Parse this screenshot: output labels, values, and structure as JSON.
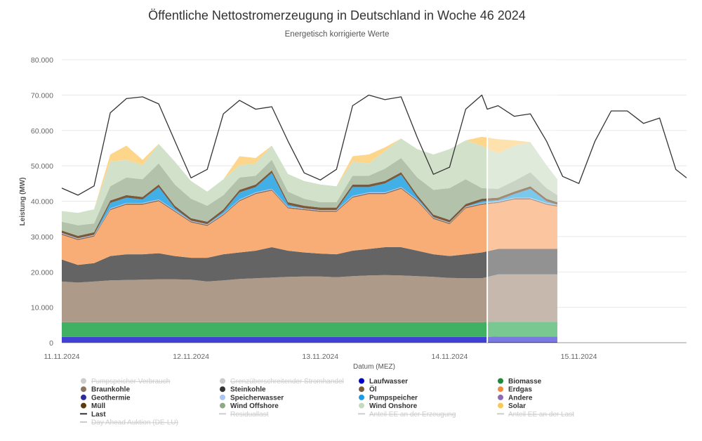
{
  "chart_data": {
    "type": "area",
    "stacked": true,
    "title": "Öffentliche Nettostromerzeugung in Deutschland in Woche 46 2024",
    "subtitle": "Energetisch korrigierte Werte",
    "xlabel": "Datum (MEZ)",
    "ylabel": "Leistung (MW)",
    "ylim": [
      0,
      80000
    ],
    "yticks": [
      "0",
      "10.000",
      "20.000",
      "30.000",
      "40.000",
      "50.000",
      "60.000",
      "70.000",
      "80.000"
    ],
    "yticks_values": [
      0,
      10000,
      20000,
      30000,
      40000,
      50000,
      60000,
      70000,
      80000
    ],
    "xticks": [
      "11.11.2024",
      "12.11.2024",
      "13.11.2024",
      "14.11.2024",
      "15.11.2024"
    ],
    "xlim": [
      "2024-11-11 00:00",
      "2024-11-15 20:00"
    ],
    "grid": true,
    "legend_placement": "bottom",
    "forecast_start": "2024-11-14 07:00",
    "x": [
      "2024-11-11 00:00",
      "2024-11-11 03:00",
      "2024-11-11 06:00",
      "2024-11-11 09:00",
      "2024-11-11 12:00",
      "2024-11-11 15:00",
      "2024-11-11 18:00",
      "2024-11-11 21:00",
      "2024-11-12 00:00",
      "2024-11-12 03:00",
      "2024-11-12 06:00",
      "2024-11-12 09:00",
      "2024-11-12 12:00",
      "2024-11-12 15:00",
      "2024-11-12 18:00",
      "2024-11-12 21:00",
      "2024-11-13 00:00",
      "2024-11-13 03:00",
      "2024-11-13 06:00",
      "2024-11-13 09:00",
      "2024-11-13 12:00",
      "2024-11-13 15:00",
      "2024-11-13 18:00",
      "2024-11-13 21:00",
      "2024-11-14 00:00",
      "2024-11-14 03:00",
      "2024-11-14 06:00",
      "2024-11-14 09:00",
      "2024-11-14 12:00",
      "2024-11-14 15:00",
      "2024-11-14 18:00",
      "2024-11-14 20:00"
    ],
    "series": [
      {
        "name": "Laufwasser",
        "color": "#4040d4",
        "values": [
          1600,
          1600,
          1600,
          1600,
          1600,
          1600,
          1600,
          1600,
          1600,
          1600,
          1600,
          1600,
          1600,
          1600,
          1600,
          1600,
          1600,
          1600,
          1600,
          1600,
          1600,
          1600,
          1600,
          1600,
          1600,
          1600,
          1600,
          1700,
          1700,
          1700,
          1700,
          1700
        ]
      },
      {
        "name": "Biomasse",
        "color": "#40b062",
        "values": [
          4200,
          4200,
          4200,
          4200,
          4200,
          4200,
          4200,
          4200,
          4200,
          4200,
          4200,
          4200,
          4200,
          4200,
          4200,
          4200,
          4200,
          4200,
          4200,
          4200,
          4200,
          4200,
          4200,
          4200,
          4200,
          4200,
          4200,
          4200,
          4200,
          4200,
          4200,
          4200
        ]
      },
      {
        "name": "Braunkohle",
        "color": "#ae9a88",
        "values": [
          11500,
          11200,
          11500,
          11800,
          11900,
          12000,
          12100,
          12100,
          12000,
          11500,
          11800,
          12200,
          12400,
          12600,
          12800,
          12900,
          12900,
          12700,
          13000,
          13200,
          13300,
          13200,
          13000,
          12800,
          12500,
          12400,
          12400,
          13400,
          13400,
          13400,
          13400,
          13400
        ]
      },
      {
        "name": "Steinkohle",
        "color": "#646464",
        "values": [
          6200,
          5000,
          5200,
          6900,
          7300,
          7200,
          7400,
          6600,
          6200,
          6700,
          7400,
          7500,
          7800,
          8600,
          7400,
          6800,
          6500,
          6500,
          7200,
          7500,
          7900,
          8000,
          7200,
          6400,
          6200,
          6800,
          7300,
          7200,
          7200,
          7200,
          7200,
          7200
        ]
      },
      {
        "name": "Erdgas",
        "color": "#f9ad76",
        "values": [
          7000,
          7000,
          7500,
          13000,
          14000,
          14000,
          14700,
          12500,
          10000,
          9000,
          11000,
          14500,
          16000,
          16000,
          12000,
          12000,
          11800,
          12000,
          15000,
          15500,
          15000,
          16500,
          14000,
          10000,
          9000,
          13000,
          13500,
          13000,
          14000,
          14000,
          12500,
          12000
        ]
      },
      {
        "name": "Öl",
        "color": "#8b6a4a",
        "values": [
          300,
          300,
          300,
          300,
          300,
          300,
          300,
          300,
          300,
          300,
          300,
          300,
          300,
          300,
          300,
          300,
          300,
          300,
          300,
          300,
          300,
          300,
          300,
          300,
          300,
          300,
          300,
          300,
          300,
          300,
          300,
          300
        ]
      },
      {
        "name": "Speicherwasser",
        "color": "#b4c8f8",
        "values": [
          200,
          200,
          200,
          200,
          200,
          200,
          200,
          200,
          200,
          200,
          200,
          200,
          200,
          200,
          200,
          200,
          200,
          200,
          200,
          200,
          200,
          200,
          200,
          200,
          200,
          200,
          200,
          200,
          200,
          200,
          200,
          200
        ]
      },
      {
        "name": "Pumpspeicher",
        "color": "#42b0e6",
        "values": [
          0,
          0,
          0,
          1500,
          1500,
          1000,
          3500,
          500,
          0,
          0,
          500,
          2000,
          1500,
          4500,
          500,
          0,
          0,
          0,
          2500,
          1500,
          2500,
          3500,
          500,
          0,
          0,
          0,
          500,
          300,
          1000,
          2500,
          500,
          0
        ]
      },
      {
        "name": "Müll",
        "color": "#7a5a3a",
        "values": [
          700,
          700,
          700,
          700,
          700,
          700,
          700,
          700,
          700,
          700,
          700,
          700,
          700,
          700,
          700,
          700,
          700,
          700,
          700,
          700,
          700,
          700,
          700,
          700,
          700,
          700,
          700,
          700,
          700,
          700,
          700,
          700
        ]
      },
      {
        "name": "Wind Offshore",
        "color": "#b3c2ab",
        "values": [
          2500,
          3000,
          2500,
          4000,
          5000,
          5000,
          6000,
          6000,
          5500,
          4500,
          4000,
          3500,
          2500,
          3000,
          3000,
          2000,
          1500,
          1500,
          2500,
          2500,
          3500,
          4000,
          5000,
          7000,
          9000,
          7000,
          3000,
          2500,
          3000,
          4000,
          3000,
          2000
        ]
      },
      {
        "name": "Wind Onshore",
        "color": "#d2e1ca",
        "values": [
          3000,
          3500,
          4000,
          7000,
          5000,
          4000,
          5500,
          6500,
          5000,
          4000,
          4500,
          3500,
          3500,
          4000,
          5000,
          5000,
          5000,
          4500,
          4000,
          3500,
          5000,
          5500,
          8000,
          10000,
          11000,
          11000,
          12000,
          10000,
          10000,
          8500,
          6500,
          4500
        ]
      },
      {
        "name": "Solar",
        "color": "#fdd68c",
        "values": [
          0,
          0,
          0,
          2000,
          4000,
          1500,
          0,
          0,
          0,
          0,
          0,
          2500,
          1500,
          0,
          0,
          0,
          0,
          0,
          1500,
          2500,
          1000,
          0,
          0,
          0,
          0,
          0,
          2500,
          4000,
          1500,
          0,
          0,
          0
        ]
      }
    ],
    "last": {
      "name": "Last",
      "color": "#333333",
      "x": [
        "2024-11-11 00:00",
        "2024-11-11 03:00",
        "2024-11-11 06:00",
        "2024-11-11 09:00",
        "2024-11-11 12:00",
        "2024-11-11 15:00",
        "2024-11-11 18:00",
        "2024-11-11 21:00",
        "2024-11-12 00:00",
        "2024-11-12 03:00",
        "2024-11-12 06:00",
        "2024-11-12 09:00",
        "2024-11-12 12:00",
        "2024-11-12 15:00",
        "2024-11-12 18:00",
        "2024-11-12 21:00",
        "2024-11-13 00:00",
        "2024-11-13 03:00",
        "2024-11-13 06:00",
        "2024-11-13 09:00",
        "2024-11-13 12:00",
        "2024-11-13 15:00",
        "2024-11-13 18:00",
        "2024-11-13 21:00",
        "2024-11-14 00:00",
        "2024-11-14 03:00",
        "2024-11-14 06:00",
        "2024-11-14 07:00",
        "2024-11-14 09:00",
        "2024-11-14 12:00",
        "2024-11-14 15:00",
        "2024-11-14 18:00",
        "2024-11-14 21:00",
        "2024-11-15 00:00",
        "2024-11-15 03:00",
        "2024-11-15 06:00",
        "2024-11-15 09:00",
        "2024-11-15 12:00",
        "2024-11-15 15:00",
        "2024-11-15 18:00",
        "2024-11-15 20:00"
      ],
      "values": [
        43700,
        41700,
        44300,
        65000,
        69000,
        69500,
        67500,
        57000,
        46600,
        49000,
        64700,
        68500,
        66000,
        66700,
        57000,
        48000,
        46000,
        49000,
        67000,
        70000,
        68700,
        69500,
        58000,
        47600,
        49600,
        66000,
        70000,
        66000,
        67000,
        64000,
        64700,
        57000,
        47000,
        45000,
        57000,
        65500,
        65500,
        62000,
        63500,
        49000,
        46600
      ]
    },
    "legend": [
      {
        "label": "Pumpspeicher Verbrauch",
        "color": "#cccccc",
        "marker": "dot",
        "enabled": false
      },
      {
        "label": "Grenzüberschreitender Stromhandel",
        "color": "#cccccc",
        "marker": "dot",
        "enabled": false
      },
      {
        "label": "Laufwasser",
        "color": "#0000cc",
        "marker": "dot",
        "enabled": true
      },
      {
        "label": "Biomasse",
        "color": "#1a8c3a",
        "marker": "dot",
        "enabled": true
      },
      {
        "label": "Braunkohle",
        "color": "#8b735f",
        "marker": "dot",
        "enabled": true
      },
      {
        "label": "Steinkohle",
        "color": "#333333",
        "marker": "dot",
        "enabled": true
      },
      {
        "label": "Öl",
        "color": "#7b5a3e",
        "marker": "dot",
        "enabled": true
      },
      {
        "label": "Erdgas",
        "color": "#f28c3c",
        "marker": "dot",
        "enabled": true
      },
      {
        "label": "Geothermie",
        "color": "#2d2d9a",
        "marker": "dot",
        "enabled": true
      },
      {
        "label": "Speicherwasser",
        "color": "#a9c4f5",
        "marker": "dot",
        "enabled": true
      },
      {
        "label": "Pumpspeicher",
        "color": "#1f9be0",
        "marker": "dot",
        "enabled": true
      },
      {
        "label": "Andere",
        "color": "#8c6bb1",
        "marker": "dot",
        "enabled": true
      },
      {
        "label": "Müll",
        "color": "#5c3a10",
        "marker": "dot",
        "enabled": true
      },
      {
        "label": "Wind Offshore",
        "color": "#8fa886",
        "marker": "dot",
        "enabled": true
      },
      {
        "label": "Wind Onshore",
        "color": "#c3dbbd",
        "marker": "dot",
        "enabled": true
      },
      {
        "label": "Solar",
        "color": "#fbc757",
        "marker": "dot",
        "enabled": true
      },
      {
        "label": "Last",
        "color": "#333333",
        "marker": "line",
        "enabled": true
      },
      {
        "label": "Residuallast",
        "color": "#cccccc",
        "marker": "line",
        "enabled": false
      },
      {
        "label": "Anteil EE an der Erzeugung",
        "color": "#cccccc",
        "marker": "line",
        "enabled": false
      },
      {
        "label": "Anteil EE an der Last",
        "color": "#cccccc",
        "marker": "line",
        "enabled": false
      },
      {
        "label": "Day Ahead Auktion (DE-LU)",
        "color": "#cccccc",
        "marker": "line",
        "enabled": false
      }
    ]
  }
}
